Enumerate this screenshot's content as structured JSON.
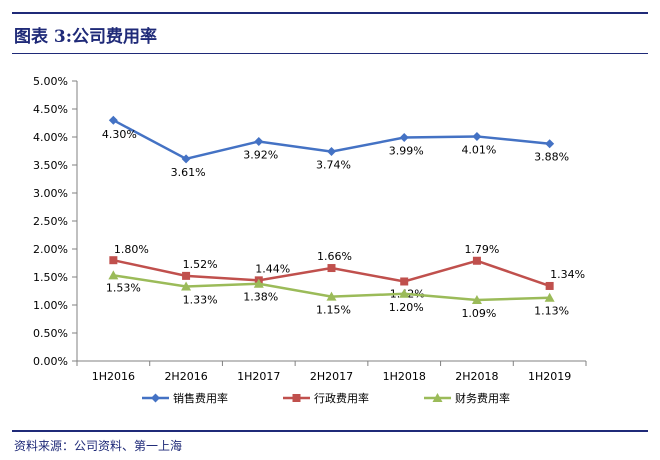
{
  "header": {
    "figure_title": "图表 3:公司费用率"
  },
  "footer": {
    "source": "资料来源：公司资料、第一上海"
  },
  "chart_data": {
    "type": "line",
    "title": "",
    "xlabel": "",
    "ylabel": "",
    "categories": [
      "1H2016",
      "2H2016",
      "1H2017",
      "2H2017",
      "1H2018",
      "2H2018",
      "1H2019"
    ],
    "ylim": [
      0,
      5
    ],
    "yticks": [
      "0.00%",
      "0.50%",
      "1.00%",
      "1.50%",
      "2.00%",
      "2.50%",
      "3.00%",
      "3.50%",
      "4.00%",
      "4.50%",
      "5.00%"
    ],
    "grid": false,
    "legend_position": "bottom",
    "series": [
      {
        "name": "销售费用率",
        "values": [
          4.3,
          3.61,
          3.92,
          3.74,
          3.99,
          4.01,
          3.88
        ],
        "labels": [
          "4.30%",
          "3.61%",
          "3.92%",
          "3.74%",
          "3.99%",
          "4.01%",
          "3.88%"
        ],
        "color": "#4472c4",
        "marker": "diamond"
      },
      {
        "name": "行政费用率",
        "values": [
          1.8,
          1.52,
          1.44,
          1.66,
          1.42,
          1.79,
          1.34
        ],
        "labels": [
          "1.80%",
          "1.52%",
          "1.44%",
          "1.66%",
          "1.42%",
          "1.79%",
          "1.34%"
        ],
        "color": "#c0504d",
        "marker": "square"
      },
      {
        "name": "财务费用率",
        "values": [
          1.53,
          1.33,
          1.38,
          1.15,
          1.2,
          1.09,
          1.13
        ],
        "labels": [
          "1.53%",
          "1.33%",
          "1.38%",
          "1.15%",
          "1.20%",
          "1.09%",
          "1.13%"
        ],
        "color": "#9bbb59",
        "marker": "triangle"
      }
    ]
  }
}
